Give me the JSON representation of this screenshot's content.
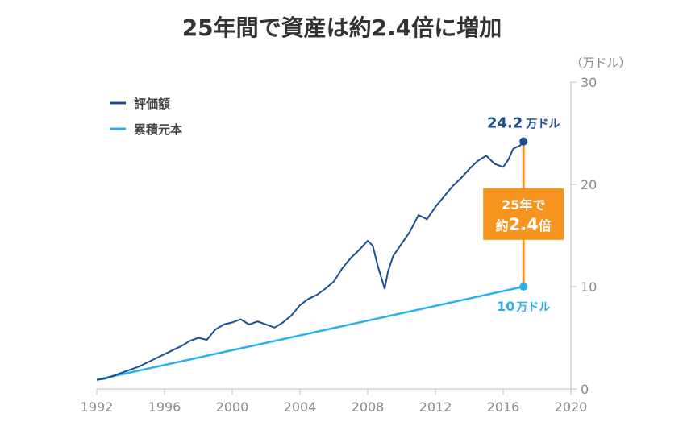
{
  "chart_data": {
    "type": "line",
    "title": "25年間で資産は約2.4倍に増加",
    "y_unit": "（万ドル）",
    "xlim": [
      1992,
      2020
    ],
    "ylim": [
      0,
      30
    ],
    "x_ticks": [
      "1992",
      "1996",
      "2000",
      "2004",
      "2008",
      "2012",
      "2016",
      "2020"
    ],
    "y_ticks": [
      "0",
      "10",
      "20",
      "30"
    ],
    "legend": {
      "position": "top-left"
    },
    "colors": {
      "valuation": "#1a4f91",
      "principal": "#2bb0ef",
      "callout": "#f7941d"
    },
    "series": [
      {
        "name": "評価額",
        "x": [
          1992,
          1992.5,
          1993,
          1993.5,
          1994,
          1994.5,
          1995,
          1995.5,
          1996,
          1996.5,
          1997,
          1997.5,
          1998,
          1998.5,
          1999,
          1999.5,
          2000,
          2000.5,
          2001,
          2001.5,
          2002,
          2002.5,
          2003,
          2003.5,
          2004,
          2004.5,
          2005,
          2005.5,
          2006,
          2006.5,
          2007,
          2007.5,
          2008,
          2008.3,
          2008.6,
          2009,
          2009.2,
          2009.5,
          2010,
          2010.5,
          2011,
          2011.5,
          2012,
          2012.5,
          2013,
          2013.5,
          2014,
          2014.5,
          2015,
          2015.5,
          2016,
          2016.3,
          2016.6,
          2017,
          2017.2
        ],
        "values": [
          0.9,
          1.0,
          1.3,
          1.6,
          1.9,
          2.2,
          2.6,
          3.0,
          3.4,
          3.8,
          4.2,
          4.7,
          5.0,
          4.8,
          5.8,
          6.3,
          6.5,
          6.8,
          6.3,
          6.6,
          6.3,
          6.0,
          6.5,
          7.2,
          8.2,
          8.8,
          9.2,
          9.8,
          10.5,
          11.8,
          12.8,
          13.6,
          14.5,
          14.0,
          12.0,
          9.8,
          11.5,
          13.0,
          14.2,
          15.4,
          17.0,
          16.6,
          17.8,
          18.8,
          19.8,
          20.6,
          21.5,
          22.3,
          22.8,
          22.0,
          21.7,
          22.4,
          23.5,
          23.8,
          24.2
        ]
      },
      {
        "name": "累積元本",
        "x": [
          1992,
          2017.2
        ],
        "values": [
          0.9,
          10.0
        ]
      }
    ],
    "annotations": {
      "end_value": {
        "number": "24.2",
        "unit": "万ドル"
      },
      "principal_value": {
        "number": "10",
        "unit": "万ドル"
      },
      "growth_box": {
        "line1": "25年で",
        "prefix": "約",
        "multiple": "2.4",
        "suffix": "倍"
      }
    }
  }
}
